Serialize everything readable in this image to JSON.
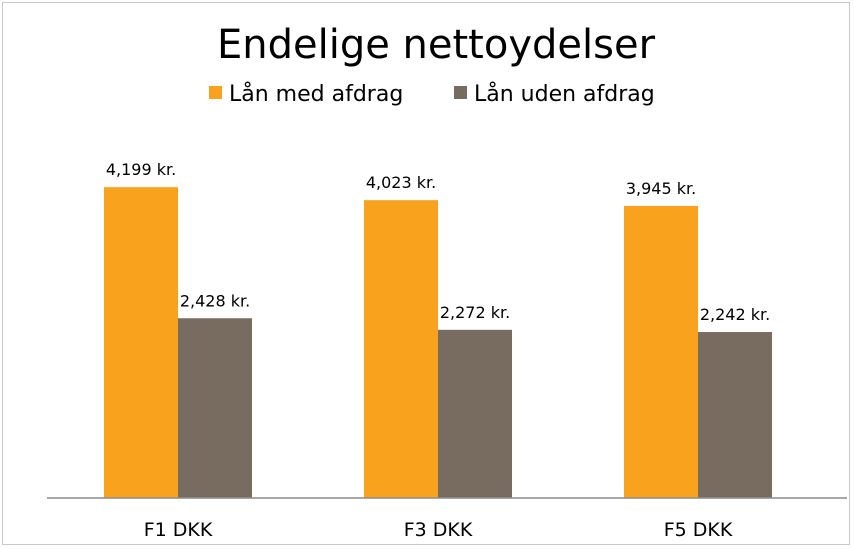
{
  "chart_data": {
    "type": "bar",
    "title": "Endelige nettoydelser",
    "categories": [
      "F1 DKK",
      "F3 DKK",
      "F5 DKK"
    ],
    "series": [
      {
        "name": "Lån med afdrag",
        "color": "#f9a21e",
        "values": [
          4199,
          4023,
          3945
        ],
        "labels": [
          "4,199 kr.",
          "4,023 kr.",
          "3,945 kr."
        ]
      },
      {
        "name": "Lån uden afdrag",
        "color": "#786b60",
        "values": [
          2428,
          2272,
          2242
        ],
        "labels": [
          "2,428 kr.",
          "2,272 kr.",
          "2,242 kr."
        ]
      }
    ],
    "ylim": [
      0,
      5000
    ],
    "grid": false,
    "legend_position": "top"
  }
}
